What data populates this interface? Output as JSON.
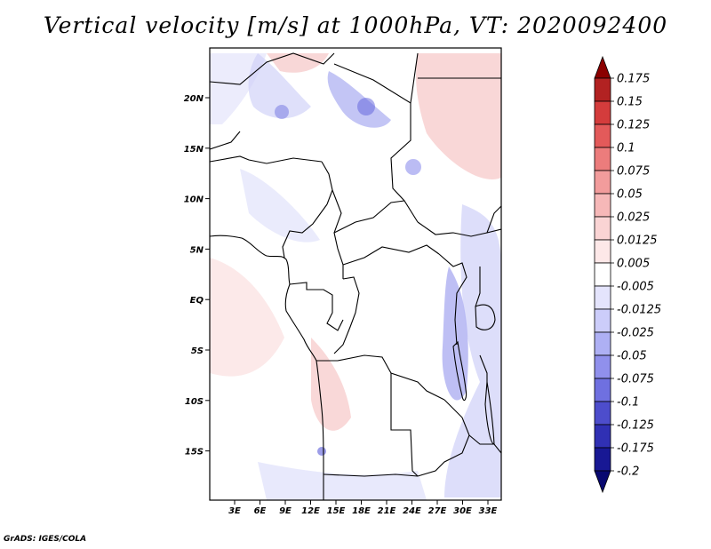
{
  "title": "Vertical velocity [m/s] at 1000hPa, VT: 2020092400",
  "credit": "GrADS: IGES/COLA",
  "map": {
    "lat_labels": [
      "20N",
      "15N",
      "10N",
      "5N",
      "EQ",
      "5S",
      "10S",
      "15S"
    ],
    "lon_labels": [
      "3E",
      "6E",
      "9E",
      "12E",
      "15E",
      "18E",
      "21E",
      "24E",
      "27E",
      "30E",
      "33E"
    ]
  },
  "colorbar": {
    "labels": [
      "0.175",
      "0.15",
      "0.125",
      "0.1",
      "0.075",
      "0.05",
      "0.025",
      "0.0125",
      "0.005",
      "-0.005",
      "-0.0125",
      "-0.025",
      "-0.05",
      "-0.075",
      "-0.1",
      "-0.125",
      "-0.175",
      "-0.2"
    ],
    "colors": [
      "#8b0000",
      "#b22222",
      "#d43c3c",
      "#e35a5a",
      "#ec7c7c",
      "#f29c9c",
      "#f6b8b8",
      "#fad4d4",
      "#fde8e8",
      "#ffffff",
      "#e4e4fc",
      "#cccdfa",
      "#aeb0f4",
      "#9090ec",
      "#6f70e0",
      "#4d4dcc",
      "#3030b4",
      "#181894",
      "#080870"
    ]
  }
}
